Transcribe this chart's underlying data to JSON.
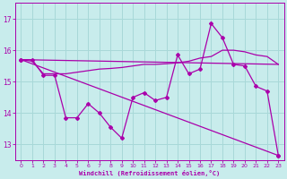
{
  "background_color": "#c8ecec",
  "grid_color": "#a8d8d8",
  "line_color": "#aa00aa",
  "xlabel": "Windchill (Refroidissement éolien,°C)",
  "ylim": [
    12.5,
    17.5
  ],
  "xlim": [
    -0.5,
    23.5
  ],
  "yticks": [
    13,
    14,
    15,
    16,
    17
  ],
  "xticks": [
    0,
    1,
    2,
    3,
    4,
    5,
    6,
    7,
    8,
    9,
    10,
    11,
    12,
    13,
    14,
    15,
    16,
    17,
    18,
    19,
    20,
    21,
    22,
    23
  ],
  "series1_zigzag": {
    "x": [
      0,
      1,
      2,
      3,
      4,
      5,
      6,
      7,
      8,
      9,
      10,
      11,
      12,
      13,
      14,
      15,
      16,
      17,
      18,
      19,
      20,
      21,
      22,
      23
    ],
    "y": [
      15.7,
      15.7,
      15.2,
      15.2,
      13.85,
      13.85,
      14.3,
      14.0,
      13.55,
      13.2,
      14.5,
      14.65,
      14.4,
      14.5,
      15.85,
      15.25,
      15.4,
      16.85,
      16.4,
      15.55,
      15.5,
      14.85,
      14.7,
      12.65
    ]
  },
  "series2_slow_rise": {
    "x": [
      0,
      1,
      2,
      3,
      4,
      5,
      6,
      7,
      8,
      9,
      10,
      11,
      12,
      13,
      14,
      15,
      16,
      17,
      18,
      19,
      20,
      21,
      22,
      23
    ],
    "y": [
      15.7,
      15.65,
      15.25,
      15.25,
      15.25,
      15.3,
      15.35,
      15.4,
      15.42,
      15.45,
      15.5,
      15.55,
      15.55,
      15.57,
      15.6,
      15.65,
      15.75,
      15.8,
      16.0,
      16.0,
      15.95,
      15.85,
      15.8,
      15.55
    ]
  },
  "series3_diag_low": {
    "x": [
      0,
      23
    ],
    "y": [
      15.7,
      12.65
    ]
  },
  "series4_diag_flat": {
    "x": [
      0,
      23
    ],
    "y": [
      15.7,
      15.55
    ]
  }
}
